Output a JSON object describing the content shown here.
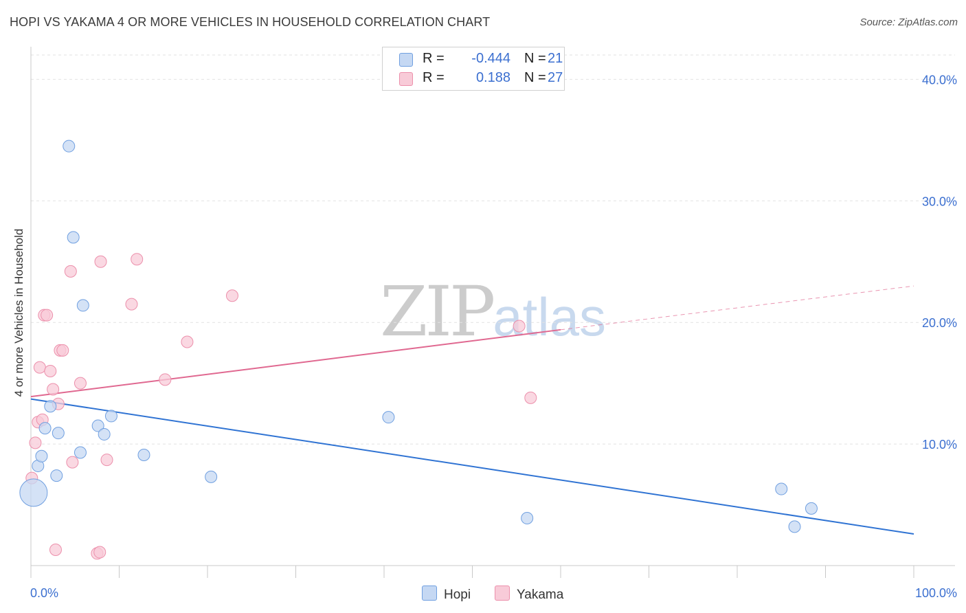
{
  "title": "HOPI VS YAKAMA 4 OR MORE VEHICLES IN HOUSEHOLD CORRELATION CHART",
  "source": "Source: ZipAtlas.com",
  "watermark": {
    "zip": "ZIP",
    "atlas": "atlas"
  },
  "legend_top": [
    {
      "label": "R =",
      "r": "-0.444",
      "n_label": "N =",
      "n": "21"
    },
    {
      "label": "R =",
      "r": "0.188",
      "n_label": "N =",
      "n": "27"
    }
  ],
  "legend_bottom": [
    "Hopi",
    "Yakama"
  ],
  "colors": {
    "hopi_fill": "#c5d8f3",
    "hopi_stroke": "#6f9fe0",
    "hopi_line": "#2f73d3",
    "yakama_fill": "#f8cbd8",
    "yakama_stroke": "#ec8fab",
    "yakama_line": "#e06890",
    "axis_label": "#3b6fd0",
    "grid": "#e2e2e2"
  },
  "chart_data": {
    "type": "scatter",
    "title": "HOPI VS YAKAMA 4 OR MORE VEHICLES IN HOUSEHOLD CORRELATION CHART",
    "xlabel": "",
    "ylabel": "4 or more Vehicles in Household",
    "xlim": [
      0,
      100
    ],
    "ylim": [
      0,
      42
    ],
    "x_tick_labels": [
      "0.0%",
      "100.0%"
    ],
    "y_ticks": [
      10,
      20,
      30,
      40
    ],
    "y_tick_labels": [
      "10.0%",
      "20.0%",
      "30.0%",
      "40.0%"
    ],
    "legend_position": "top-center",
    "series": [
      {
        "name": "Hopi",
        "r": -0.444,
        "n": 21,
        "points": [
          {
            "x": 0.3,
            "y": 6.0,
            "big": true
          },
          {
            "x": 0.8,
            "y": 8.2
          },
          {
            "x": 1.2,
            "y": 9.0
          },
          {
            "x": 1.6,
            "y": 11.3
          },
          {
            "x": 2.2,
            "y": 13.1
          },
          {
            "x": 2.9,
            "y": 7.4
          },
          {
            "x": 3.1,
            "y": 10.9
          },
          {
            "x": 4.3,
            "y": 34.5
          },
          {
            "x": 4.8,
            "y": 27.0
          },
          {
            "x": 5.6,
            "y": 9.3
          },
          {
            "x": 5.9,
            "y": 21.4
          },
          {
            "x": 7.6,
            "y": 11.5
          },
          {
            "x": 8.3,
            "y": 10.8
          },
          {
            "x": 9.1,
            "y": 12.3
          },
          {
            "x": 12.8,
            "y": 9.1
          },
          {
            "x": 20.4,
            "y": 7.3
          },
          {
            "x": 40.5,
            "y": 12.2
          },
          {
            "x": 56.2,
            "y": 3.9
          },
          {
            "x": 85.0,
            "y": 6.3
          },
          {
            "x": 86.5,
            "y": 3.2
          },
          {
            "x": 88.4,
            "y": 4.7
          }
        ],
        "trend": {
          "x0": 0,
          "y0": 13.7,
          "x1": 100,
          "y1": 2.6
        }
      },
      {
        "name": "Yakama",
        "r": 0.188,
        "n": 27,
        "points": [
          {
            "x": 0.1,
            "y": 7.2
          },
          {
            "x": 0.5,
            "y": 10.1
          },
          {
            "x": 0.8,
            "y": 11.8
          },
          {
            "x": 1.0,
            "y": 16.3
          },
          {
            "x": 1.3,
            "y": 12.0
          },
          {
            "x": 1.5,
            "y": 20.6
          },
          {
            "x": 1.8,
            "y": 20.6
          },
          {
            "x": 2.2,
            "y": 16.0
          },
          {
            "x": 2.5,
            "y": 14.5
          },
          {
            "x": 2.8,
            "y": 1.3
          },
          {
            "x": 3.1,
            "y": 13.3
          },
          {
            "x": 3.3,
            "y": 17.7
          },
          {
            "x": 3.6,
            "y": 17.7
          },
          {
            "x": 4.5,
            "y": 24.2
          },
          {
            "x": 4.7,
            "y": 8.5
          },
          {
            "x": 5.6,
            "y": 15.0
          },
          {
            "x": 7.5,
            "y": 1.0
          },
          {
            "x": 7.8,
            "y": 1.1
          },
          {
            "x": 7.9,
            "y": 25.0
          },
          {
            "x": 8.6,
            "y": 8.7
          },
          {
            "x": 11.4,
            "y": 21.5
          },
          {
            "x": 12.0,
            "y": 25.2
          },
          {
            "x": 15.2,
            "y": 15.3
          },
          {
            "x": 17.7,
            "y": 18.4
          },
          {
            "x": 22.8,
            "y": 22.2
          },
          {
            "x": 55.3,
            "y": 19.7
          },
          {
            "x": 56.6,
            "y": 13.8
          }
        ],
        "trend": {
          "x0": 0,
          "y0": 13.9,
          "x1": 60,
          "y1": 19.4
        },
        "trend_dashed": {
          "x0": 60,
          "y0": 19.4,
          "x1": 100,
          "y1": 23.0
        }
      }
    ]
  }
}
